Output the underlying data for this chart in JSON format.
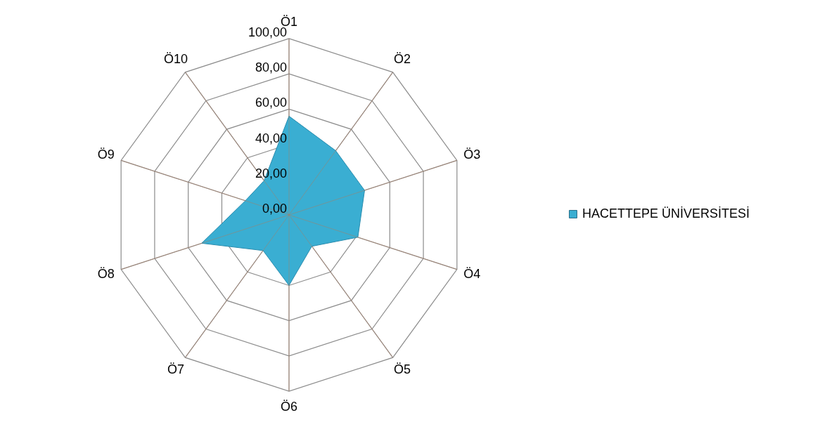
{
  "chart_data": {
    "type": "radar",
    "categories": [
      "Ö1",
      "Ö2",
      "Ö3",
      "Ö4",
      "Ö5",
      "Ö6",
      "Ö7",
      "Ö8",
      "Ö9",
      "Ö10"
    ],
    "series": [
      {
        "name": "HACETTEPE ÜNİVERSİTESİ",
        "color": "#3aaed2",
        "values": [
          56,
          45,
          45,
          41,
          22,
          40,
          25,
          52,
          26,
          24
        ]
      }
    ],
    "ylim": [
      0,
      100
    ],
    "yticks": [
      {
        "value": 0,
        "label": "0,00"
      },
      {
        "value": 20,
        "label": "20,00"
      },
      {
        "value": 40,
        "label": "40,00"
      },
      {
        "value": 60,
        "label": "60,00"
      },
      {
        "value": 80,
        "label": "80,00"
      },
      {
        "value": 100,
        "label": "100,00"
      }
    ],
    "grid": true,
    "legend": "right"
  }
}
